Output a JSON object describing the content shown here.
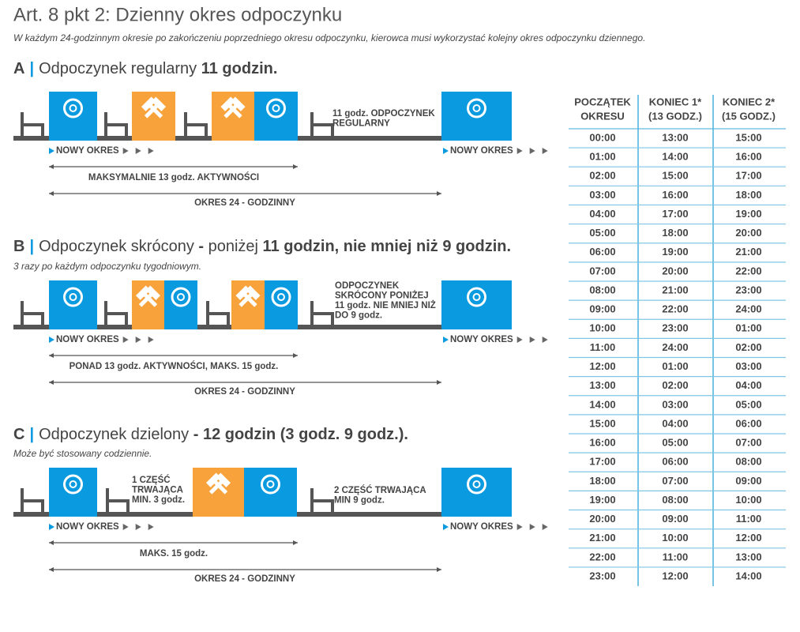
{
  "header": {
    "title": "Art. 8 pkt 2: Dzienny okres odpoczynku",
    "subtitle": "W każdym 24-godzinnym okresie po zakończeniu poprzedniego okresu odpoczynku, kierowca musi wykorzystać kolejny okres odpoczynku dziennego."
  },
  "sections": [
    {
      "letter": "A",
      "title": [
        {
          "text": "Odpoczynek regularny ",
          "bold": false
        },
        {
          "text": "11 godzin.",
          "bold": true
        }
      ],
      "rest": [
        "11 godz. ODPOCZYNEK",
        "REGULARNY"
      ],
      "new_period": "NOWY OKRES",
      "activity": "MAKSYMALNIE 13 godz. AKTYWNOŚCI",
      "period": "OKRES 24 - GODZINNY"
    },
    {
      "letter": "B",
      "title": [
        {
          "text": "Odpoczynek skrócony",
          "bold": false
        },
        {
          "text": " - ",
          "bold": true
        },
        {
          "text": "poniżej ",
          "bold": false
        },
        {
          "text": "11 godzin, nie mniej niż 9 godzin.",
          "bold": true
        }
      ],
      "note": "3 razy po każdym odpoczynku tygodniowym.",
      "rest": [
        "ODPOCZYNEK",
        "SKRÓCONY PONIŻEJ",
        "11 godz. NIE MNIEJ NIŻ",
        "DO 9 godz."
      ],
      "new_period": "NOWY OKRES",
      "activity": "PONAD 13 godz. AKTYWNOŚCI, MAKS. 15 godz.",
      "period": "OKRES 24 - GODZINNY"
    },
    {
      "letter": "C",
      "title": [
        {
          "text": "Odpoczynek dzielony",
          "bold": false
        },
        {
          "text": " - 12 godzin (3 godz. 9 godz.).",
          "bold": true
        }
      ],
      "note": "Może być stosowany codziennie.",
      "part": [
        "1 CZĘŚĆ",
        "TRWAJĄCA",
        "MIN. 3 godz."
      ],
      "rest": [
        "2 CZĘŚĆ TRWAJĄCA",
        "MIN 9 godz."
      ],
      "new_period": "NOWY OKRES",
      "activity": "MAKS. 15 godz.",
      "period": "OKRES 24 - GODZINNY"
    }
  ],
  "table": {
    "header": [
      [
        "POCZĄTEK",
        "OKRESU"
      ],
      [
        "KONIEC 1*",
        "(13 GODZ.)"
      ],
      [
        "KONIEC 2*",
        "(15 GODZ.)"
      ]
    ],
    "rows": [
      [
        "00:00",
        "13:00",
        "15:00"
      ],
      [
        "01:00",
        "14:00",
        "16:00"
      ],
      [
        "02:00",
        "15:00",
        "17:00"
      ],
      [
        "03:00",
        "16:00",
        "18:00"
      ],
      [
        "04:00",
        "17:00",
        "19:00"
      ],
      [
        "05:00",
        "18:00",
        "20:00"
      ],
      [
        "06:00",
        "19:00",
        "21:00"
      ],
      [
        "07:00",
        "20:00",
        "22:00"
      ],
      [
        "08:00",
        "21:00",
        "23:00"
      ],
      [
        "09:00",
        "22:00",
        "24:00"
      ],
      [
        "10:00",
        "23:00",
        "01:00"
      ],
      [
        "11:00",
        "24:00",
        "02:00"
      ],
      [
        "12:00",
        "01:00",
        "03:00"
      ],
      [
        "13:00",
        "02:00",
        "04:00"
      ],
      [
        "14:00",
        "03:00",
        "05:00"
      ],
      [
        "15:00",
        "04:00",
        "06:00"
      ],
      [
        "16:00",
        "05:00",
        "07:00"
      ],
      [
        "17:00",
        "06:00",
        "08:00"
      ],
      [
        "18:00",
        "07:00",
        "09:00"
      ],
      [
        "19:00",
        "08:00",
        "10:00"
      ],
      [
        "20:00",
        "09:00",
        "11:00"
      ],
      [
        "21:00",
        "10:00",
        "12:00"
      ],
      [
        "22:00",
        "11:00",
        "13:00"
      ],
      [
        "23:00",
        "12:00",
        "14:00"
      ]
    ]
  }
}
